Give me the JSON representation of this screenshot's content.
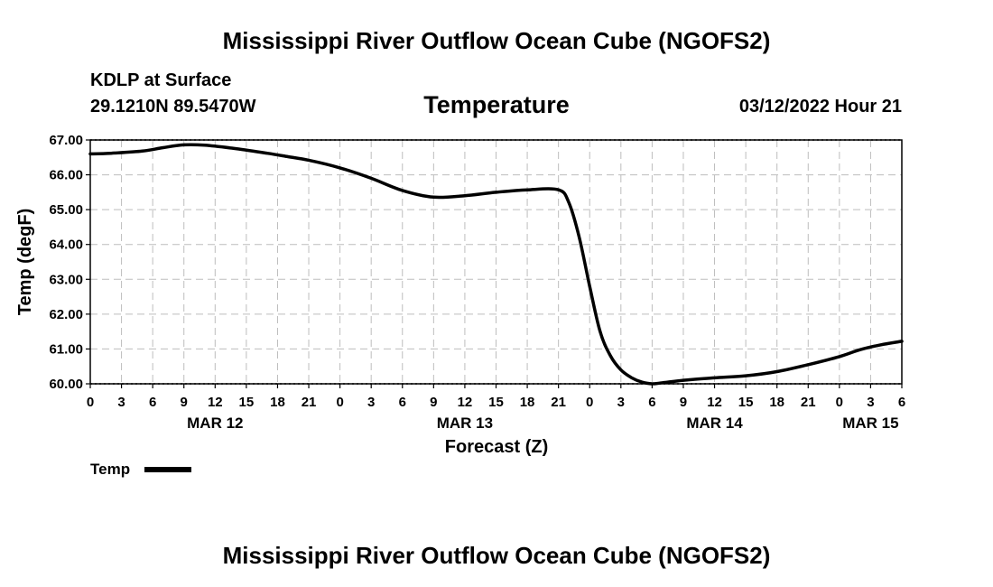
{
  "header": {
    "title": "Mississippi River Outflow Ocean Cube (NGOFS2)",
    "station": "KDLP at Surface",
    "coords": "29.1210N  89.5470W",
    "datetime": "03/12/2022 Hour 21",
    "footer_title": "Mississippi River Outflow Ocean Cube (NGOFS2)"
  },
  "chart_data": {
    "type": "line",
    "title": "Temperature",
    "xlabel": "Forecast (Z)",
    "ylabel": "Temp (degF)",
    "ylim": [
      60,
      67
    ],
    "xlim_hours": [
      0,
      78
    ],
    "grid": true,
    "y_ticks": [
      "60.00",
      "61.00",
      "62.00",
      "63.00",
      "64.00",
      "65.00",
      "66.00",
      "67.00"
    ],
    "x_tick_hours": [
      0,
      3,
      6,
      9,
      12,
      15,
      18,
      21,
      24,
      27,
      30,
      33,
      36,
      39,
      42,
      45,
      48,
      51,
      54,
      57,
      60,
      63,
      66,
      69,
      72,
      75,
      78
    ],
    "x_tick_labels": [
      "0",
      "3",
      "6",
      "9",
      "12",
      "15",
      "18",
      "21",
      "0",
      "3",
      "6",
      "9",
      "12",
      "15",
      "18",
      "21",
      "0",
      "3",
      "6",
      "9",
      "12",
      "15",
      "18",
      "21",
      "0",
      "3",
      "6"
    ],
    "day_labels": [
      {
        "hour": 12,
        "label": "MAR 12"
      },
      {
        "hour": 36,
        "label": "MAR 13"
      },
      {
        "hour": 60,
        "label": "MAR 14"
      },
      {
        "hour": 75,
        "label": "MAR 15"
      }
    ],
    "legend": {
      "label": "Temp",
      "placement": "bottom-left"
    },
    "series": [
      {
        "name": "Temp",
        "color": "#000000",
        "x": [
          0,
          2,
          5,
          7,
          9,
          11,
          14,
          17,
          19,
          21,
          24,
          27,
          30,
          33,
          36,
          39,
          42,
          45,
          46,
          47,
          48,
          49,
          50,
          51,
          52,
          53,
          54,
          55,
          57,
          60,
          63,
          66,
          69,
          72,
          74,
          76,
          78
        ],
        "y": [
          66.6,
          66.62,
          66.68,
          66.78,
          66.86,
          66.85,
          66.75,
          66.62,
          66.52,
          66.42,
          66.2,
          65.9,
          65.55,
          65.36,
          65.4,
          65.5,
          65.57,
          65.57,
          65.2,
          64.2,
          62.8,
          61.5,
          60.8,
          60.4,
          60.18,
          60.05,
          60.0,
          60.03,
          60.1,
          60.17,
          60.23,
          60.35,
          60.55,
          60.78,
          60.98,
          61.12,
          61.22
        ]
      }
    ]
  }
}
